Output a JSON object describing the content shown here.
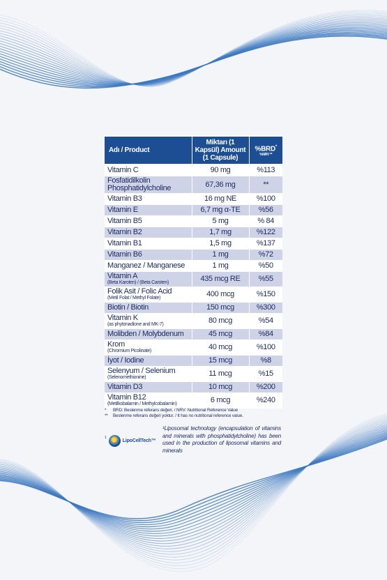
{
  "table": {
    "headers": {
      "product": "Adı / Product",
      "amount": "Miktarı (1 Kapsül) Amount (1 Capsule)",
      "brd": "%BRD",
      "brd_sup": "*",
      "brd_sub": "%NRV **"
    },
    "rows": [
      {
        "name": "Vitamin C",
        "sub": "",
        "amount": "90 mg",
        "percent": "%113"
      },
      {
        "name": "Fosfatidilkolin Phosphatidylcholine",
        "sub": "",
        "amount": "67,36 mg",
        "percent": "**"
      },
      {
        "name": "Vitamin B3",
        "sub": "",
        "amount": "16 mg NE",
        "percent": "%100"
      },
      {
        "name": "Vitamin E",
        "sub": "",
        "amount": "6,7 mg α-TE",
        "percent": "%56"
      },
      {
        "name": "Vitamin B5",
        "sub": "",
        "amount": "5 mg",
        "percent": "% 84"
      },
      {
        "name": "Vitamin B2",
        "sub": "",
        "amount": "1,7 mg",
        "percent": "%122"
      },
      {
        "name": "Vitamin B1",
        "sub": "",
        "amount": "1,5 mg",
        "percent": "%137"
      },
      {
        "name": "Vitamin B6",
        "sub": "",
        "amount": "1 mg",
        "percent": "%72"
      },
      {
        "name": "Manganez / Manganese",
        "sub": "",
        "amount": "1 mg",
        "percent": "%50"
      },
      {
        "name": "Vitamin A",
        "sub": "(Beta Karoten) / (Beta Caroten)",
        "amount": "435 mcg RE",
        "percent": "%55"
      },
      {
        "name": "Folik Asit / Folic Acid",
        "sub": "(Metil Folat / Methyl Folate)",
        "amount": "400 mcg",
        "percent": "%150"
      },
      {
        "name": "Biotin / Biotin",
        "sub": "",
        "amount": "150 mcg",
        "percent": "%300"
      },
      {
        "name": "Vitamin K",
        "sub": "(as phytonadione and MK-7)",
        "amount": "80 mcg",
        "percent": "%54"
      },
      {
        "name": "Molibden / Molybdenum",
        "sub": "",
        "amount": "45 mcg",
        "percent": "%84"
      },
      {
        "name": "Krom",
        "sub": "(Chromium Picolinate)",
        "amount": "40 mcg",
        "percent": "%100"
      },
      {
        "name": "İyot / Iodine",
        "sub": "",
        "amount": "15 mcg",
        "percent": "%8"
      },
      {
        "name": "Selenyum / Selenium",
        "sub": "(Selenomethionine)",
        "amount": "11 mcg",
        "percent": "%15"
      },
      {
        "name": "Vitamin D3",
        "sub": "",
        "amount": "10 mcg",
        "percent": "%200"
      },
      {
        "name": "Vitamin B12",
        "sub": "(Metilkobalamin / Methylcobalamin)",
        "amount": "6 mcg",
        "percent": "%240"
      }
    ]
  },
  "footnotes": {
    "star1_mark": "*",
    "star1": "BRD: Beslenme referans değeri. / NRV: Nutritional Reference Value",
    "star2_mark": "**",
    "star2": "Beslenme referans değeri yoktur. / It has no nutritional reference value."
  },
  "lipo": {
    "sup": "1",
    "brand": "LipoCellTech™",
    "note": "¹Liposomal technology (encapsulation of vitamins and minerals with phosphatidylcholine) has been used in the production of liposomal vitamins and minerals"
  },
  "colors": {
    "header_bg": "#1d4e94",
    "row_shade": "#cfd3e8",
    "text": "#1a2b5e",
    "wave": "#3b78c0"
  }
}
